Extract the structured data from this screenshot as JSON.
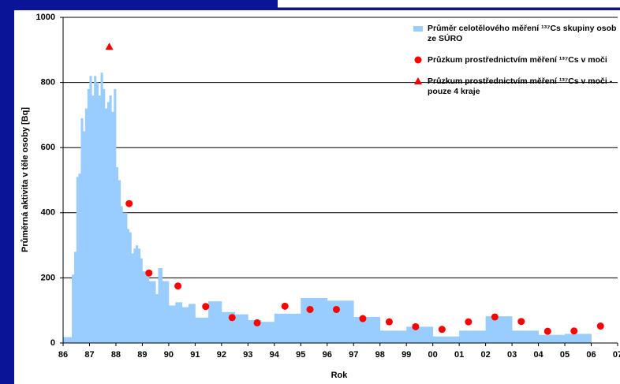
{
  "chart_data": {
    "type": "combo",
    "ylabel": "Průměrná aktivita v těle osoby  [Bq]",
    "xlabel": "Rok",
    "xlim": [
      1986,
      2007
    ],
    "xticks": [
      {
        "value": 1986,
        "label": "86"
      },
      {
        "value": 1987,
        "label": "87"
      },
      {
        "value": 1988,
        "label": "88"
      },
      {
        "value": 1989,
        "label": "89"
      },
      {
        "value": 1990,
        "label": "90"
      },
      {
        "value": 1991,
        "label": "91"
      },
      {
        "value": 1992,
        "label": "92"
      },
      {
        "value": 1993,
        "label": "93"
      },
      {
        "value": 1994,
        "label": "94"
      },
      {
        "value": 1995,
        "label": "95"
      },
      {
        "value": 1996,
        "label": "96"
      },
      {
        "value": 1997,
        "label": "97"
      },
      {
        "value": 1998,
        "label": "98"
      },
      {
        "value": 1999,
        "label": "99"
      },
      {
        "value": 2000,
        "label": "00"
      },
      {
        "value": 2001,
        "label": "01"
      },
      {
        "value": 2002,
        "label": "02"
      },
      {
        "value": 2003,
        "label": "03"
      },
      {
        "value": 2004,
        "label": "04"
      },
      {
        "value": 2005,
        "label": "05"
      },
      {
        "value": 2006,
        "label": "06"
      },
      {
        "value": 2007,
        "label": "07"
      }
    ],
    "ylim": [
      0,
      1000
    ],
    "yticks": [
      0,
      200,
      400,
      600,
      800,
      1000
    ],
    "grid": true,
    "series": [
      {
        "name": "Průměr celotělového měření ¹³⁷Cs skupiny osob ze SÚRO",
        "type": "histogram",
        "color": "#99ccff",
        "bins": [
          1986,
          1986.33,
          1986.42,
          1986.5,
          1986.58,
          1986.67,
          1986.75,
          1986.83,
          1986.92,
          1987,
          1987.08,
          1987.17,
          1987.25,
          1987.33,
          1987.42,
          1987.5,
          1987.58,
          1987.67,
          1987.75,
          1987.83,
          1987.92,
          1988,
          1988.08,
          1988.17,
          1988.25,
          1988.33,
          1988.42,
          1988.5,
          1988.58,
          1988.67,
          1988.75,
          1988.83,
          1988.92,
          1989,
          1989.25,
          1989.5,
          1989.6,
          1989.75,
          1990,
          1990.25,
          1990.5,
          1990.75,
          1991,
          1991.5,
          1992,
          1992.5,
          1993,
          1993.5,
          1994,
          1995,
          1996,
          1997,
          1998,
          1999,
          2000,
          2001,
          2002,
          2003,
          2004,
          2005,
          2006
        ],
        "values": [
          18,
          210,
          280,
          510,
          520,
          690,
          650,
          720,
          780,
          820,
          760,
          820,
          800,
          760,
          830,
          780,
          720,
          740,
          760,
          710,
          780,
          540,
          500,
          420,
          400,
          400,
          350,
          340,
          275,
          290,
          300,
          290,
          260,
          220,
          190,
          150,
          230,
          190,
          115,
          125,
          110,
          120,
          78,
          128,
          95,
          88,
          70,
          65,
          90,
          138,
          130,
          80,
          38,
          50,
          20,
          38,
          82,
          38,
          25,
          28
        ]
      },
      {
        "name": "Průzkum prostřednictvím měření ¹³⁷Cs v moči",
        "type": "scatter",
        "marker": "circle",
        "color": "#ff0000",
        "x": [
          1988.5,
          1989.25,
          1990.35,
          1991.4,
          1992.4,
          1993.35,
          1994.4,
          1995.35,
          1996.35,
          1997.35,
          1998.35,
          1999.35,
          2000.35,
          2001.35,
          2002.35,
          2003.35,
          2004.35,
          2005.35,
          2006.35
        ],
        "values": [
          428,
          215,
          175,
          112,
          78,
          62,
          113,
          103,
          103,
          75,
          65,
          50,
          42,
          65,
          80,
          66,
          36,
          37,
          52
        ]
      },
      {
        "name": "Průzkum prostřednictvím měření ¹³⁷Cs v moči - pouze 4 kraje",
        "type": "scatter",
        "marker": "triangle",
        "color": "#ff0000",
        "x": [
          1987.75
        ],
        "values": [
          910
        ]
      }
    ]
  }
}
